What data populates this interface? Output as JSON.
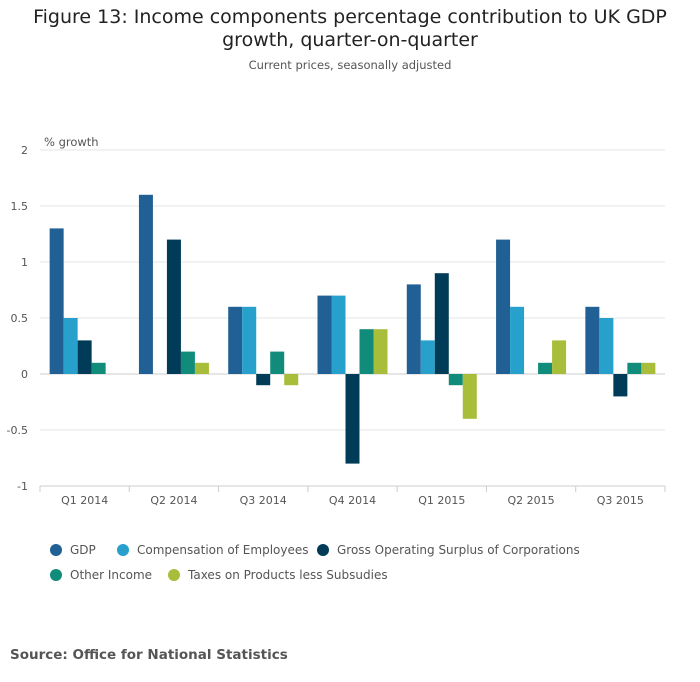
{
  "chart_data": {
    "type": "bar",
    "title": "Figure 13: Income components percentage contribution to UK GDP growth, quarter-on-quarter",
    "subtitle": "Current prices, seasonally adjusted",
    "ylabel": "% growth",
    "xlabel": "",
    "ylim": [
      -1,
      2
    ],
    "yticks": [
      "2",
      "1.5",
      "1",
      "0.5",
      "0",
      "-0.5",
      "-1"
    ],
    "grid": true,
    "legend": "bottom",
    "categories": [
      "Q1 2014",
      "Q2 2014",
      "Q3 2014",
      "Q4 2014",
      "Q1 2015",
      "Q2 2015",
      "Q3 2015"
    ],
    "series": [
      {
        "name": "GDP",
        "color": "#206095",
        "values": [
          1.3,
          1.6,
          0.6,
          0.7,
          0.8,
          1.2,
          0.6
        ]
      },
      {
        "name": "Compensation of Employees",
        "color": "#27a0cc",
        "values": [
          0.5,
          0,
          0.6,
          0.7,
          0.3,
          0.6,
          0.5
        ]
      },
      {
        "name": "Gross Operating Surplus of Corporations",
        "color": "#003c57",
        "values": [
          0.3,
          1.2,
          -0.1,
          -0.8,
          0.9,
          0,
          -0.2
        ]
      },
      {
        "name": "Other Income",
        "color": "#118c7b",
        "values": [
          0.1,
          0.2,
          0.2,
          0.4,
          -0.1,
          0.1,
          0.1
        ]
      },
      {
        "name": "Taxes on Products less Subsudies",
        "color": "#a8bd3a",
        "values": [
          0,
          0.1,
          -0.1,
          0.4,
          -0.4,
          0.3,
          0.1
        ]
      }
    ]
  },
  "source": "Source: Office for National Statistics"
}
